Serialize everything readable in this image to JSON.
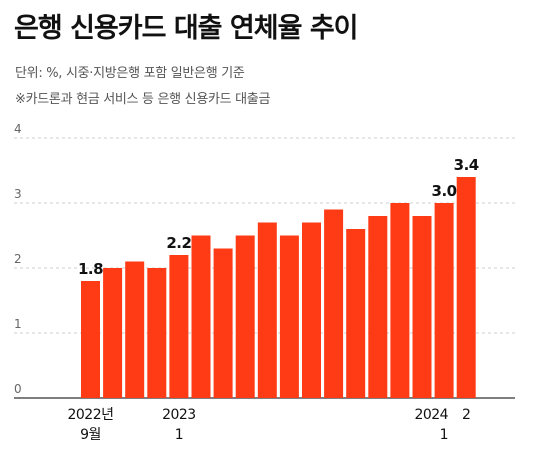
{
  "title": "은행 신용카드 대출 연체율 추이",
  "notes": {
    "unit": "단위: %, 시중·지방은행 포함 일반은행 기준",
    "scope": "※카드론과 현금 서비스 등 은행 신용카드 대출금"
  },
  "colors": {
    "bar": "#ff3b16",
    "grid": "#cfcfcf",
    "axis": "#333333"
  },
  "chart_data": {
    "type": "bar",
    "values": [
      1.8,
      2.0,
      2.1,
      2.0,
      2.2,
      2.5,
      2.3,
      2.5,
      2.7,
      2.5,
      2.7,
      2.9,
      2.6,
      2.8,
      3.0,
      2.8,
      3.0,
      3.4
    ],
    "value_labels": [
      {
        "index": 0,
        "text": "1.8"
      },
      {
        "index": 4,
        "text": "2.2"
      },
      {
        "index": 16,
        "text": "3.0"
      },
      {
        "index": 17,
        "text": "3.4"
      }
    ],
    "x_labels": [
      {
        "index": 0,
        "lines": [
          "2022년",
          "9월"
        ]
      },
      {
        "index": 4,
        "lines": [
          "2023",
          "1"
        ]
      },
      {
        "index": 16,
        "lines": [
          "2024",
          "1"
        ]
      },
      {
        "index": 17,
        "lines": [
          "2"
        ]
      }
    ],
    "y_ticks": [
      "0",
      "1",
      "2",
      "3",
      "4"
    ],
    "ylim": [
      0,
      4
    ],
    "grid": true
  }
}
